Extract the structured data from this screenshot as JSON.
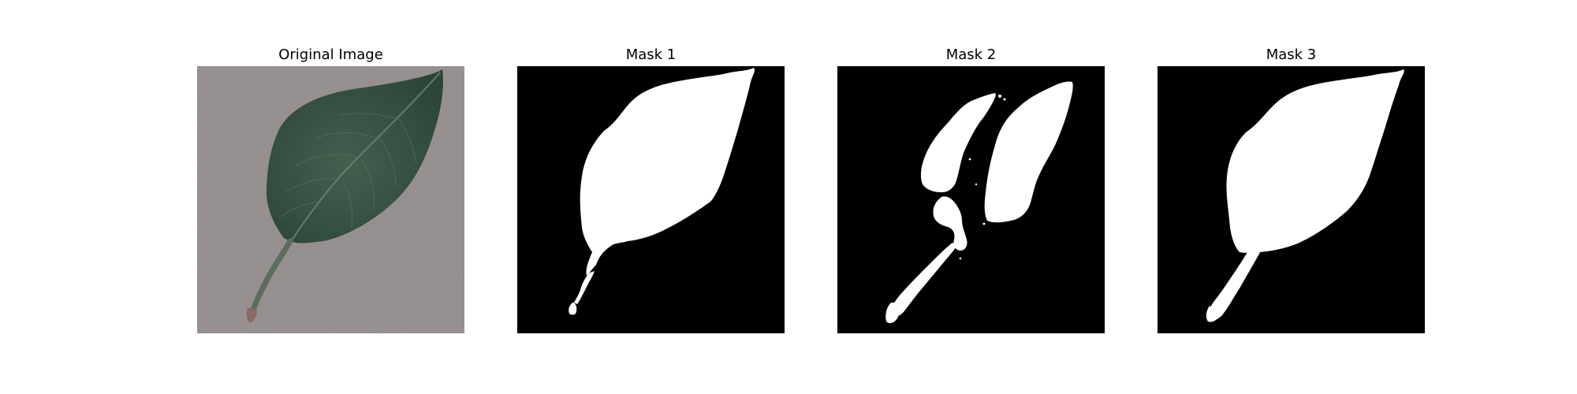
{
  "figure": {
    "panels": [
      {
        "title": "Original Image"
      },
      {
        "title": "Mask 1"
      },
      {
        "title": "Mask 2"
      },
      {
        "title": "Mask 3"
      }
    ]
  },
  "colors": {
    "background_original": "#8f8787",
    "leaf_dark": "#2f4a3c",
    "leaf_mid": "#3e5c4b",
    "leaf_vein": "#6c8577",
    "stem": "#5b6e5d",
    "mask_background": "#000000",
    "mask_foreground": "#ffffff"
  }
}
